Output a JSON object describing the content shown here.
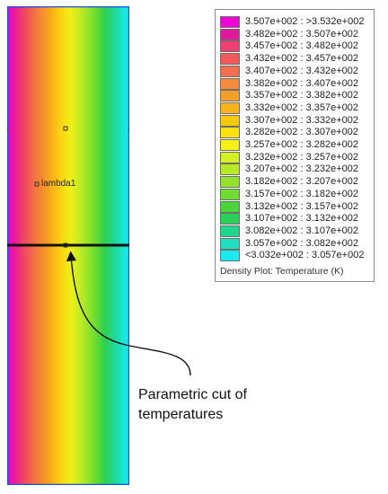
{
  "legend": {
    "title": "Density Plot: Temperature (K)",
    "items": [
      {
        "label": "3.507e+002 : >3.532e+002",
        "color": "#f000d8"
      },
      {
        "label": "3.482e+002 : 3.507e+002",
        "color": "#e01a9c"
      },
      {
        "label": "3.457e+002 : 3.482e+002",
        "color": "#ef3e72"
      },
      {
        "label": "3.432e+002 : 3.457e+002",
        "color": "#f25a5a"
      },
      {
        "label": "3.407e+002 : 3.432e+002",
        "color": "#f07050"
      },
      {
        "label": "3.382e+002 : 3.407e+002",
        "color": "#f58a3a"
      },
      {
        "label": "3.357e+002 : 3.382e+002",
        "color": "#f59e2a"
      },
      {
        "label": "3.332e+002 : 3.357e+002",
        "color": "#f8b41a"
      },
      {
        "label": "3.307e+002 : 3.332e+002",
        "color": "#fcc810"
      },
      {
        "label": "3.282e+002 : 3.307e+002",
        "color": "#fde010"
      },
      {
        "label": "3.257e+002 : 3.282e+002",
        "color": "#f4f018"
      },
      {
        "label": "3.232e+002 : 3.257e+002",
        "color": "#d6ef22"
      },
      {
        "label": "3.207e+002 : 3.232e+002",
        "color": "#b6ea28"
      },
      {
        "label": "3.182e+002 : 3.207e+002",
        "color": "#92e22c"
      },
      {
        "label": "3.157e+002 : 3.182e+002",
        "color": "#6edc30"
      },
      {
        "label": "3.132e+002 : 3.157e+002",
        "color": "#48d63a"
      },
      {
        "label": "3.107e+002 : 3.132e+002",
        "color": "#28d058"
      },
      {
        "label": "3.082e+002 : 3.107e+002",
        "color": "#20d48e"
      },
      {
        "label": "3.057e+002 : 3.082e+002",
        "color": "#1ee0c0"
      },
      {
        "label": "<3.032e+002 : 3.057e+002",
        "color": "#18eaf0"
      }
    ]
  },
  "plot": {
    "region_label": "lambda1",
    "border_color": "#1e4fd8",
    "cut_line_color": "#111111"
  },
  "annotation": {
    "line1": "Parametric cut of",
    "line2": "temperatures"
  }
}
